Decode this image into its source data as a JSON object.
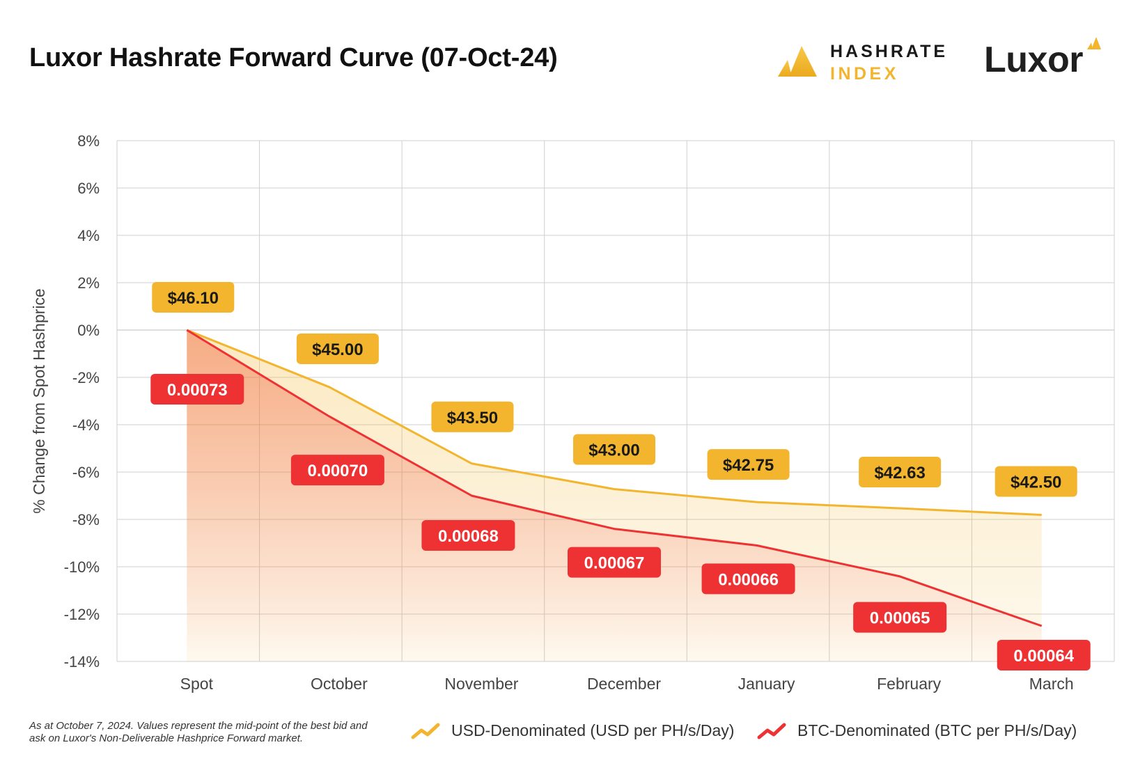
{
  "header": {
    "title": "Luxor Hashrate Forward Curve (07-Oct-24)",
    "logo_hashrate_line1": "HASHRATE",
    "logo_hashrate_line2": "INDEX",
    "logo_luxor": "Luxor"
  },
  "colors": {
    "usd": "#F2B52D",
    "btc": "#EE3233",
    "grid": "#cfcfcf",
    "axis_text": "#444444"
  },
  "chart_data": {
    "type": "line",
    "title": "Luxor Hashrate Forward Curve (07-Oct-24)",
    "ylabel": "% Change from Spot Hashprice",
    "xlabel": "",
    "ylim": [
      -14,
      8
    ],
    "y_ticks": [
      8,
      6,
      4,
      2,
      0,
      -2,
      -4,
      -6,
      -8,
      -10,
      -12,
      -14
    ],
    "y_tick_labels": [
      "8%",
      "6%",
      "4%",
      "2%",
      "0%",
      "-2%",
      "-4%",
      "-6%",
      "-8%",
      "-10%",
      "-12%",
      "-14%"
    ],
    "categories": [
      "Spot",
      "October",
      "November",
      "December",
      "January",
      "February",
      "March"
    ],
    "grid": true,
    "legend_position": "bottom",
    "series": [
      {
        "name": "USD-Denominated (USD per PH/s/Day)",
        "color": "#F2B52D",
        "values": [
          0,
          -2.41,
          -5.64,
          -6.72,
          -7.27,
          -7.53,
          -7.81
        ],
        "labels": [
          "$46.10",
          "$45.00",
          "$43.50",
          "$43.00",
          "$42.75",
          "$42.63",
          "$42.50"
        ]
      },
      {
        "name": "BTC-Denominated (BTC per PH/s/Day)",
        "color": "#EE3233",
        "values": [
          0,
          -3.65,
          -7.0,
          -8.4,
          -9.1,
          -10.4,
          -12.5
        ],
        "labels": [
          "0.00073",
          "0.00070",
          "0.00068",
          "0.00067",
          "0.00066",
          "0.00065",
          "0.00064"
        ]
      }
    ]
  },
  "footnote": "As at October 7, 2024. Values represent the mid-point of the best bid and ask on Luxor's Non-Deliverable Hashprice Forward market."
}
